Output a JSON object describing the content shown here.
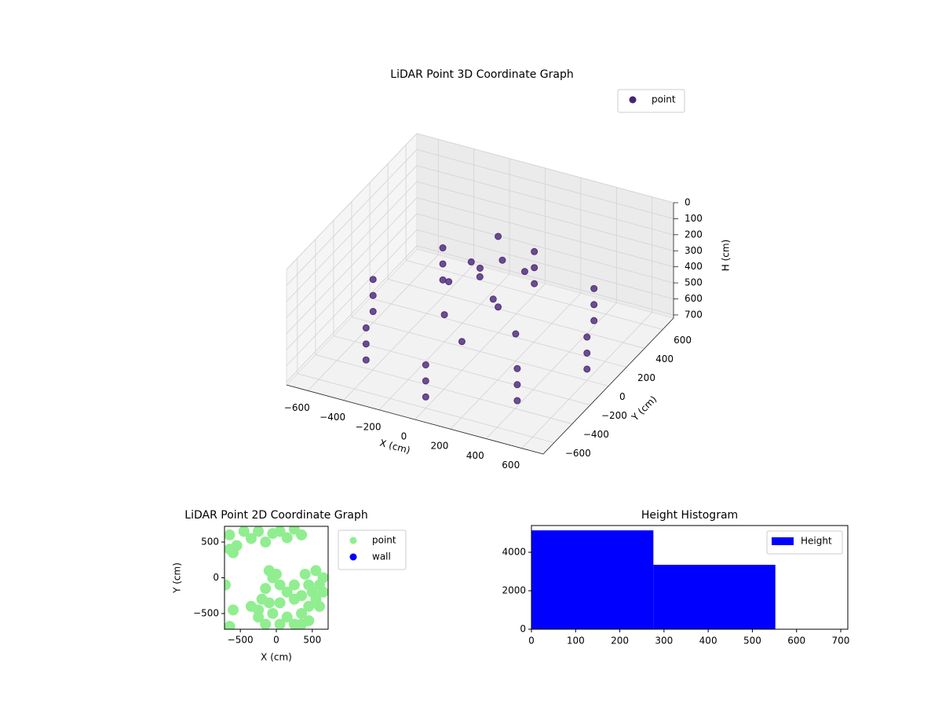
{
  "chart_data": [
    {
      "type": "scatter3d",
      "title": "LiDAR Point 3D Coordinate Graph",
      "xlabel": "X (cm)",
      "ylabel": "Y (cm)",
      "zlabel": "H (cm)",
      "xlim": [
        -720,
        720
      ],
      "ylim": [
        -720,
        720
      ],
      "zlim": [
        720,
        0
      ],
      "xticks": [
        {
          "value": -600,
          "label": "−600"
        },
        {
          "value": -400,
          "label": "−400"
        },
        {
          "value": -200,
          "label": "−200"
        },
        0,
        200,
        400,
        600
      ],
      "yticks": [
        {
          "value": -600,
          "label": "−600"
        },
        {
          "value": -400,
          "label": "−400"
        },
        {
          "value": -200,
          "label": "−200"
        },
        0,
        200,
        400,
        600
      ],
      "zticks": [
        0,
        100,
        200,
        300,
        400,
        500,
        600,
        700
      ],
      "grid": true,
      "legend": "upper right",
      "series": [
        {
          "name": "point",
          "color": "#482475",
          "x": [
            600,
            424,
            0,
            -424,
            -600,
            -424,
            0,
            424,
            600,
            424,
            0,
            -424,
            -600,
            -424,
            0,
            424,
            600,
            424,
            0,
            -424,
            -600,
            -424,
            0,
            424,
            0,
            100,
            -100,
            50,
            200,
            -150,
            0,
            150,
            -200,
            200,
            0,
            0
          ],
          "y": [
            0,
            424,
            600,
            424,
            0,
            -424,
            -600,
            -424,
            0,
            424,
            600,
            424,
            0,
            -424,
            -600,
            -424,
            0,
            424,
            600,
            424,
            0,
            -424,
            -600,
            -424,
            0,
            50,
            100,
            -100,
            100,
            -50,
            200,
            -150,
            0,
            0,
            200,
            -200
          ],
          "z": [
            450,
            450,
            450,
            450,
            450,
            450,
            450,
            450,
            550,
            550,
            550,
            550,
            550,
            550,
            550,
            550,
            650,
            650,
            650,
            650,
            650,
            650,
            650,
            650,
            200,
            150,
            250,
            180,
            220,
            300,
            120,
            260,
            550,
            550,
            560,
            540
          ]
        }
      ]
    },
    {
      "type": "scatter",
      "title": "LiDAR Point 2D Coordinate Graph",
      "xlabel": "X (cm)",
      "ylabel": "Y (cm)",
      "xlim": [
        -720,
        720
      ],
      "ylim": [
        -720,
        720
      ],
      "xticks": [
        {
          "value": -500,
          "label": "−500"
        },
        0,
        500
      ],
      "yticks": [
        {
          "value": -500,
          "label": "−500"
        },
        0,
        500
      ],
      "legend": "outside upper right",
      "series": [
        {
          "name": "point",
          "color": "#90ee90",
          "x": [
            -650,
            -550,
            -450,
            -350,
            -250,
            -150,
            -50,
            50,
            150,
            250,
            350,
            -650,
            -600,
            -710,
            -600,
            -650,
            -350,
            -250,
            -150,
            -50,
            50,
            150,
            250,
            350,
            450,
            550,
            600,
            650,
            550,
            450,
            350,
            250,
            150,
            50,
            -50,
            -100,
            0,
            -200,
            -150,
            50,
            250,
            400,
            -250,
            500,
            650,
            600,
            -100,
            350,
            450
          ],
          "y": [
            600,
            450,
            650,
            550,
            650,
            500,
            620,
            650,
            560,
            680,
            600,
            400,
            350,
            -100,
            -450,
            -680,
            -400,
            -550,
            -650,
            -500,
            -650,
            -550,
            -650,
            -500,
            -400,
            -300,
            -100,
            0,
            100,
            -100,
            -250,
            -300,
            -200,
            -100,
            0,
            100,
            50,
            -300,
            -150,
            -350,
            -100,
            50,
            -450,
            -200,
            -200,
            -400,
            -350,
            -650,
            -600
          ]
        },
        {
          "name": "wall",
          "color": "#0000ff",
          "x": [],
          "y": []
        }
      ]
    },
    {
      "type": "histogram",
      "title": "Height Histogram",
      "bins": [
        0,
        276,
        552
      ],
      "counts": [
        5140,
        3350
      ],
      "xlim": [
        0,
        716
      ],
      "ylim": [
        0,
        5390
      ],
      "xticks": [
        0,
        100,
        200,
        300,
        400,
        500,
        600,
        700
      ],
      "yticks": [
        0,
        2000,
        4000
      ],
      "legend": "upper right",
      "series": [
        {
          "name": "Height",
          "color": "#0000ff"
        }
      ]
    }
  ]
}
